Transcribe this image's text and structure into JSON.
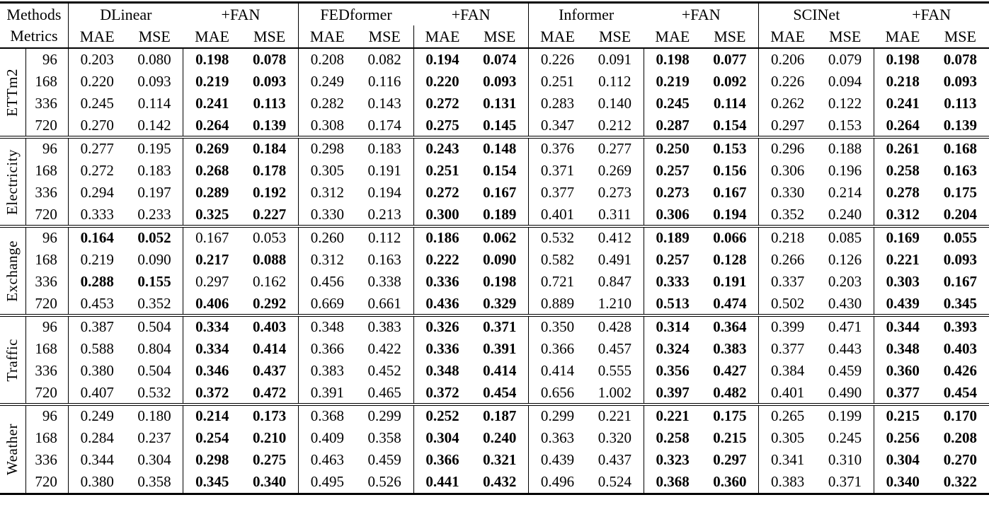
{
  "table": {
    "corner": {
      "row1": "Methods",
      "row2": "Metrics"
    },
    "methods": [
      "DLinear",
      "+FAN",
      "FEDformer",
      "+FAN",
      "Informer",
      "+FAN",
      "SCINet",
      "+FAN"
    ],
    "metric_labels": [
      "MAE",
      "MSE"
    ],
    "groups": [
      {
        "dataset": "ETTm2",
        "rows": [
          {
            "horizon": "96",
            "values": [
              "0.203",
              "0.080",
              "0.198",
              "0.078",
              "0.208",
              "0.082",
              "0.194",
              "0.074",
              "0.226",
              "0.091",
              "0.198",
              "0.077",
              "0.206",
              "0.079",
              "0.198",
              "0.078"
            ],
            "bold": [
              0,
              0,
              1,
              1,
              0,
              0,
              1,
              1,
              0,
              0,
              1,
              1,
              0,
              0,
              1,
              1
            ]
          },
          {
            "horizon": "168",
            "values": [
              "0.220",
              "0.093",
              "0.219",
              "0.093",
              "0.249",
              "0.116",
              "0.220",
              "0.093",
              "0.251",
              "0.112",
              "0.219",
              "0.092",
              "0.226",
              "0.094",
              "0.218",
              "0.093"
            ],
            "bold": [
              0,
              0,
              1,
              1,
              0,
              0,
              1,
              1,
              0,
              0,
              1,
              1,
              0,
              0,
              1,
              1
            ]
          },
          {
            "horizon": "336",
            "values": [
              "0.245",
              "0.114",
              "0.241",
              "0.113",
              "0.282",
              "0.143",
              "0.272",
              "0.131",
              "0.283",
              "0.140",
              "0.245",
              "0.114",
              "0.262",
              "0.122",
              "0.241",
              "0.113"
            ],
            "bold": [
              0,
              0,
              1,
              1,
              0,
              0,
              1,
              1,
              0,
              0,
              1,
              1,
              0,
              0,
              1,
              1
            ]
          },
          {
            "horizon": "720",
            "values": [
              "0.270",
              "0.142",
              "0.264",
              "0.139",
              "0.308",
              "0.174",
              "0.275",
              "0.145",
              "0.347",
              "0.212",
              "0.287",
              "0.154",
              "0.297",
              "0.153",
              "0.264",
              "0.139"
            ],
            "bold": [
              0,
              0,
              1,
              1,
              0,
              0,
              1,
              1,
              0,
              0,
              1,
              1,
              0,
              0,
              1,
              1
            ]
          }
        ]
      },
      {
        "dataset": "Electricity",
        "rows": [
          {
            "horizon": "96",
            "values": [
              "0.277",
              "0.195",
              "0.269",
              "0.184",
              "0.298",
              "0.183",
              "0.243",
              "0.148",
              "0.376",
              "0.277",
              "0.250",
              "0.153",
              "0.296",
              "0.188",
              "0.261",
              "0.168"
            ],
            "bold": [
              0,
              0,
              1,
              1,
              0,
              0,
              1,
              1,
              0,
              0,
              1,
              1,
              0,
              0,
              1,
              1
            ]
          },
          {
            "horizon": "168",
            "values": [
              "0.272",
              "0.183",
              "0.268",
              "0.178",
              "0.305",
              "0.191",
              "0.251",
              "0.154",
              "0.371",
              "0.269",
              "0.257",
              "0.156",
              "0.306",
              "0.196",
              "0.258",
              "0.163"
            ],
            "bold": [
              0,
              0,
              1,
              1,
              0,
              0,
              1,
              1,
              0,
              0,
              1,
              1,
              0,
              0,
              1,
              1
            ]
          },
          {
            "horizon": "336",
            "values": [
              "0.294",
              "0.197",
              "0.289",
              "0.192",
              "0.312",
              "0.194",
              "0.272",
              "0.167",
              "0.377",
              "0.273",
              "0.273",
              "0.167",
              "0.330",
              "0.214",
              "0.278",
              "0.175"
            ],
            "bold": [
              0,
              0,
              1,
              1,
              0,
              0,
              1,
              1,
              0,
              0,
              1,
              1,
              0,
              0,
              1,
              1
            ]
          },
          {
            "horizon": "720",
            "values": [
              "0.333",
              "0.233",
              "0.325",
              "0.227",
              "0.330",
              "0.213",
              "0.300",
              "0.189",
              "0.401",
              "0.311",
              "0.306",
              "0.194",
              "0.352",
              "0.240",
              "0.312",
              "0.204"
            ],
            "bold": [
              0,
              0,
              1,
              1,
              0,
              0,
              1,
              1,
              0,
              0,
              1,
              1,
              0,
              0,
              1,
              1
            ]
          }
        ]
      },
      {
        "dataset": "Exchange",
        "rows": [
          {
            "horizon": "96",
            "values": [
              "0.164",
              "0.052",
              "0.167",
              "0.053",
              "0.260",
              "0.112",
              "0.186",
              "0.062",
              "0.532",
              "0.412",
              "0.189",
              "0.066",
              "0.218",
              "0.085",
              "0.169",
              "0.055"
            ],
            "bold": [
              1,
              1,
              0,
              0,
              0,
              0,
              1,
              1,
              0,
              0,
              1,
              1,
              0,
              0,
              1,
              1
            ]
          },
          {
            "horizon": "168",
            "values": [
              "0.219",
              "0.090",
              "0.217",
              "0.088",
              "0.312",
              "0.163",
              "0.222",
              "0.090",
              "0.582",
              "0.491",
              "0.257",
              "0.128",
              "0.266",
              "0.126",
              "0.221",
              "0.093"
            ],
            "bold": [
              0,
              0,
              1,
              1,
              0,
              0,
              1,
              1,
              0,
              0,
              1,
              1,
              0,
              0,
              1,
              1
            ]
          },
          {
            "horizon": "336",
            "values": [
              "0.288",
              "0.155",
              "0.297",
              "0.162",
              "0.456",
              "0.338",
              "0.336",
              "0.198",
              "0.721",
              "0.847",
              "0.333",
              "0.191",
              "0.337",
              "0.203",
              "0.303",
              "0.167"
            ],
            "bold": [
              1,
              1,
              0,
              0,
              0,
              0,
              1,
              1,
              0,
              0,
              1,
              1,
              0,
              0,
              1,
              1
            ]
          },
          {
            "horizon": "720",
            "values": [
              "0.453",
              "0.352",
              "0.406",
              "0.292",
              "0.669",
              "0.661",
              "0.436",
              "0.329",
              "0.889",
              "1.210",
              "0.513",
              "0.474",
              "0.502",
              "0.430",
              "0.439",
              "0.345"
            ],
            "bold": [
              0,
              0,
              1,
              1,
              0,
              0,
              1,
              1,
              0,
              0,
              1,
              1,
              0,
              0,
              1,
              1
            ]
          }
        ]
      },
      {
        "dataset": "Traffic",
        "rows": [
          {
            "horizon": "96",
            "values": [
              "0.387",
              "0.504",
              "0.334",
              "0.403",
              "0.348",
              "0.383",
              "0.326",
              "0.371",
              "0.350",
              "0.428",
              "0.314",
              "0.364",
              "0.399",
              "0.471",
              "0.344",
              "0.393"
            ],
            "bold": [
              0,
              0,
              1,
              1,
              0,
              0,
              1,
              1,
              0,
              0,
              1,
              1,
              0,
              0,
              1,
              1
            ]
          },
          {
            "horizon": "168",
            "values": [
              "0.588",
              "0.804",
              "0.334",
              "0.414",
              "0.366",
              "0.422",
              "0.336",
              "0.391",
              "0.366",
              "0.457",
              "0.324",
              "0.383",
              "0.377",
              "0.443",
              "0.348",
              "0.403"
            ],
            "bold": [
              0,
              0,
              1,
              1,
              0,
              0,
              1,
              1,
              0,
              0,
              1,
              1,
              0,
              0,
              1,
              1
            ]
          },
          {
            "horizon": "336",
            "values": [
              "0.380",
              "0.504",
              "0.346",
              "0.437",
              "0.383",
              "0.452",
              "0.348",
              "0.414",
              "0.414",
              "0.555",
              "0.356",
              "0.427",
              "0.384",
              "0.459",
              "0.360",
              "0.426"
            ],
            "bold": [
              0,
              0,
              1,
              1,
              0,
              0,
              1,
              1,
              0,
              0,
              1,
              1,
              0,
              0,
              1,
              1
            ]
          },
          {
            "horizon": "720",
            "values": [
              "0.407",
              "0.532",
              "0.372",
              "0.472",
              "0.391",
              "0.465",
              "0.372",
              "0.454",
              "0.656",
              "1.002",
              "0.397",
              "0.482",
              "0.401",
              "0.490",
              "0.377",
              "0.454"
            ],
            "bold": [
              0,
              0,
              1,
              1,
              0,
              0,
              1,
              1,
              0,
              0,
              1,
              1,
              0,
              0,
              1,
              1
            ]
          }
        ]
      },
      {
        "dataset": "Weather",
        "rows": [
          {
            "horizon": "96",
            "values": [
              "0.249",
              "0.180",
              "0.214",
              "0.173",
              "0.368",
              "0.299",
              "0.252",
              "0.187",
              "0.299",
              "0.221",
              "0.221",
              "0.175",
              "0.265",
              "0.199",
              "0.215",
              "0.170"
            ],
            "bold": [
              0,
              0,
              1,
              1,
              0,
              0,
              1,
              1,
              0,
              0,
              1,
              1,
              0,
              0,
              1,
              1
            ]
          },
          {
            "horizon": "168",
            "values": [
              "0.284",
              "0.237",
              "0.254",
              "0.210",
              "0.409",
              "0.358",
              "0.304",
              "0.240",
              "0.363",
              "0.320",
              "0.258",
              "0.215",
              "0.305",
              "0.245",
              "0.256",
              "0.208"
            ],
            "bold": [
              0,
              0,
              1,
              1,
              0,
              0,
              1,
              1,
              0,
              0,
              1,
              1,
              0,
              0,
              1,
              1
            ]
          },
          {
            "horizon": "336",
            "values": [
              "0.344",
              "0.304",
              "0.298",
              "0.275",
              "0.463",
              "0.459",
              "0.366",
              "0.321",
              "0.439",
              "0.437",
              "0.323",
              "0.297",
              "0.341",
              "0.310",
              "0.304",
              "0.270"
            ],
            "bold": [
              0,
              0,
              1,
              1,
              0,
              0,
              1,
              1,
              0,
              0,
              1,
              1,
              0,
              0,
              1,
              1
            ]
          },
          {
            "horizon": "720",
            "values": [
              "0.380",
              "0.358",
              "0.345",
              "0.340",
              "0.495",
              "0.526",
              "0.441",
              "0.432",
              "0.496",
              "0.524",
              "0.368",
              "0.360",
              "0.383",
              "0.371",
              "0.340",
              "0.322"
            ],
            "bold": [
              0,
              0,
              1,
              1,
              0,
              0,
              1,
              1,
              0,
              0,
              1,
              1,
              0,
              0,
              1,
              1
            ]
          }
        ]
      }
    ],
    "layout_notes": {
      "methods_row_left_borders": [
        2,
        4,
        6
      ],
      "metrics_row_left_borders": [
        4,
        6,
        8,
        12
      ]
    }
  }
}
